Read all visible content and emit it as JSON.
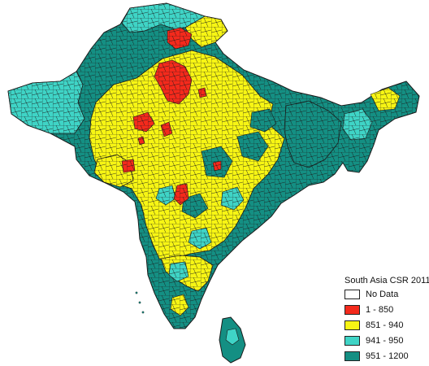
{
  "legend": {
    "title": "South Asia CSR 2011",
    "items": [
      {
        "label": "No Data",
        "color": "#ffffff"
      },
      {
        "label": "1 - 850",
        "color": "#f42a1c"
      },
      {
        "label": "851 - 940",
        "color": "#f7f514"
      },
      {
        "label": "941 - 950",
        "color": "#3fd4c6"
      },
      {
        "label": "951 - 1200",
        "color": "#148f83"
      }
    ]
  },
  "colors": {
    "no_data": "#ffffff",
    "low": "#f42a1c",
    "mid": "#f7f514",
    "high": "#3fd4c6",
    "highest": "#148f83",
    "border": "#1a1a1a"
  }
}
